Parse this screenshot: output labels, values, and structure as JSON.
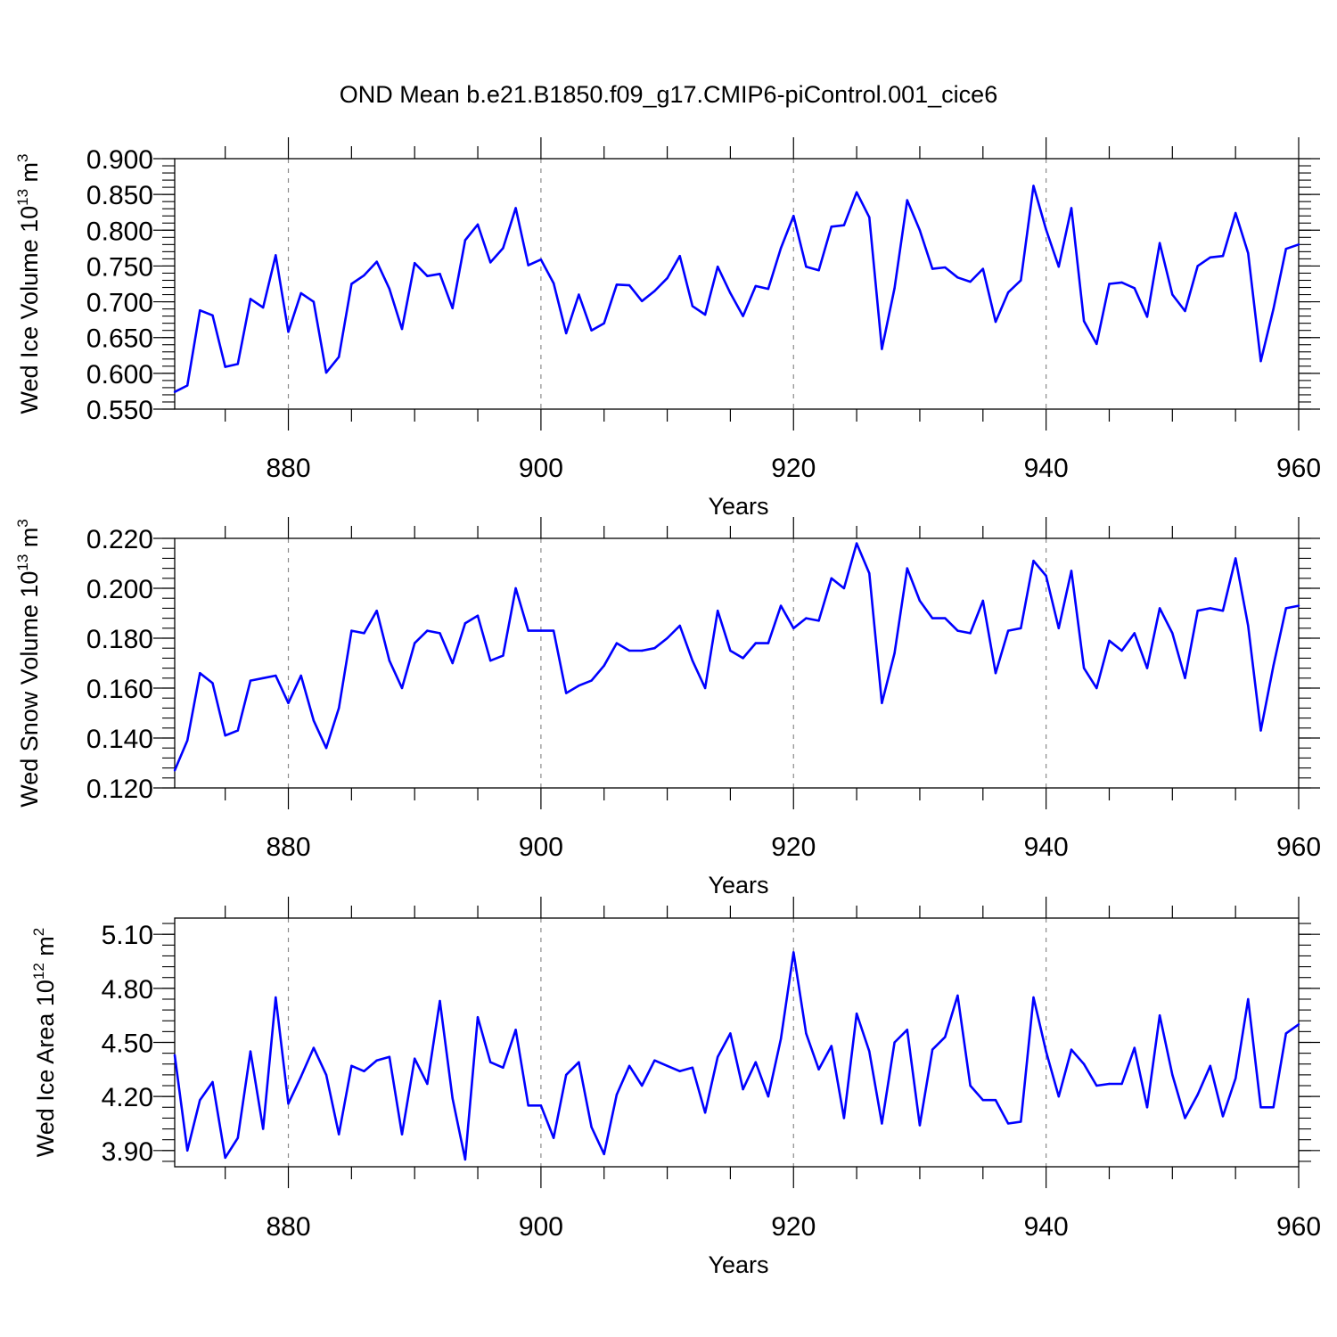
{
  "title": "OND Mean b.e21.B1850.f09_g17.CMIP6-piControl.001_cice6",
  "chart_data": [
    {
      "type": "line",
      "ylabel": {
        "main": "Wed Ice Volume 10",
        "exp": "13",
        "unit": " m",
        "unit_exp": "3"
      },
      "xlabel": "Years",
      "xlim": [
        871,
        960
      ],
      "ylim": [
        0.55,
        0.9
      ],
      "xticks": [
        880,
        900,
        920,
        940,
        960
      ],
      "yticks": [
        0.55,
        0.6,
        0.65,
        0.7,
        0.75,
        0.8,
        0.85,
        0.9
      ],
      "ytick_labels": [
        "0.550",
        "0.600",
        "0.650",
        "0.700",
        "0.750",
        "0.800",
        "0.850",
        "0.900"
      ],
      "color": "#0000ff",
      "x_start": 871,
      "values": [
        0.574,
        0.583,
        0.688,
        0.681,
        0.609,
        0.613,
        0.704,
        0.692,
        0.765,
        0.658,
        0.712,
        0.7,
        0.601,
        0.623,
        0.725,
        0.737,
        0.756,
        0.718,
        0.662,
        0.754,
        0.736,
        0.739,
        0.691,
        0.786,
        0.808,
        0.755,
        0.775,
        0.831,
        0.751,
        0.759,
        0.726,
        0.656,
        0.71,
        0.66,
        0.67,
        0.724,
        0.723,
        0.701,
        0.715,
        0.733,
        0.764,
        0.694,
        0.682,
        0.749,
        0.712,
        0.68,
        0.722,
        0.718,
        0.775,
        0.82,
        0.749,
        0.744,
        0.805,
        0.807,
        0.853,
        0.818,
        0.634,
        0.719,
        0.842,
        0.8,
        0.746,
        0.748,
        0.734,
        0.728,
        0.746,
        0.672,
        0.713,
        0.73,
        0.862,
        0.801,
        0.749,
        0.831,
        0.673,
        0.641,
        0.725,
        0.727,
        0.719,
        0.679,
        0.782,
        0.71,
        0.687,
        0.75,
        0.762,
        0.764,
        0.824,
        0.768,
        0.617,
        0.69,
        0.774,
        0.78
      ]
    },
    {
      "type": "line",
      "ylabel": {
        "main": "Wed Snow Volume 10",
        "exp": "13",
        "unit": " m",
        "unit_exp": "3"
      },
      "xlabel": "Years",
      "xlim": [
        871,
        960
      ],
      "ylim": [
        0.12,
        0.22
      ],
      "xticks": [
        880,
        900,
        920,
        940,
        960
      ],
      "yticks": [
        0.12,
        0.14,
        0.16,
        0.18,
        0.2,
        0.22
      ],
      "ytick_labels": [
        "0.120",
        "0.140",
        "0.160",
        "0.180",
        "0.200",
        "0.220"
      ],
      "color": "#0000ff",
      "x_start": 871,
      "values": [
        0.127,
        0.139,
        0.166,
        0.162,
        0.141,
        0.143,
        0.163,
        0.164,
        0.165,
        0.154,
        0.165,
        0.147,
        0.136,
        0.152,
        0.183,
        0.182,
        0.191,
        0.171,
        0.16,
        0.178,
        0.183,
        0.182,
        0.17,
        0.186,
        0.189,
        0.171,
        0.173,
        0.2,
        0.183,
        0.183,
        0.183,
        0.158,
        0.161,
        0.163,
        0.169,
        0.178,
        0.175,
        0.175,
        0.176,
        0.18,
        0.185,
        0.171,
        0.16,
        0.191,
        0.175,
        0.172,
        0.178,
        0.178,
        0.193,
        0.184,
        0.188,
        0.187,
        0.204,
        0.2,
        0.218,
        0.206,
        0.154,
        0.174,
        0.208,
        0.195,
        0.188,
        0.188,
        0.183,
        0.182,
        0.195,
        0.166,
        0.183,
        0.184,
        0.211,
        0.205,
        0.184,
        0.207,
        0.168,
        0.16,
        0.179,
        0.175,
        0.182,
        0.168,
        0.192,
        0.182,
        0.164,
        0.191,
        0.192,
        0.191,
        0.212,
        0.185,
        0.143,
        0.169,
        0.192,
        0.193
      ]
    },
    {
      "type": "line",
      "ylabel": {
        "main": "Wed Ice Area 10",
        "exp": "12",
        "unit": " m",
        "unit_exp": "2"
      },
      "xlabel": "Years",
      "xlim": [
        871,
        960
      ],
      "ylim": [
        3.81,
        5.19
      ],
      "xticks": [
        880,
        900,
        920,
        940,
        960
      ],
      "yticks": [
        3.9,
        4.2,
        4.5,
        4.8,
        5.1
      ],
      "ytick_labels": [
        "3.90",
        "4.20",
        "4.50",
        "4.80",
        "5.10"
      ],
      "color": "#0000ff",
      "x_start": 871,
      "values": [
        4.43,
        3.9,
        4.18,
        4.28,
        3.86,
        3.97,
        4.45,
        4.02,
        4.75,
        4.16,
        4.31,
        4.47,
        4.32,
        3.99,
        4.37,
        4.34,
        4.4,
        4.42,
        3.99,
        4.41,
        4.27,
        4.73,
        4.19,
        3.85,
        4.64,
        4.39,
        4.36,
        4.57,
        4.15,
        4.15,
        3.97,
        4.32,
        4.39,
        4.03,
        3.88,
        4.21,
        4.37,
        4.26,
        4.4,
        4.37,
        4.34,
        4.36,
        4.11,
        4.42,
        4.55,
        4.24,
        4.39,
        4.2,
        4.52,
        5.0,
        4.55,
        4.35,
        4.48,
        4.08,
        4.66,
        4.45,
        4.05,
        4.5,
        4.57,
        4.04,
        4.46,
        4.53,
        4.76,
        4.26,
        4.18,
        4.18,
        4.05,
        4.06,
        4.75,
        4.45,
        4.2,
        4.46,
        4.38,
        4.26,
        4.27,
        4.27,
        4.47,
        4.14,
        4.65,
        4.32,
        4.08,
        4.21,
        4.37,
        4.09,
        4.3,
        4.74,
        4.14,
        4.14,
        4.55,
        4.6
      ]
    }
  ]
}
